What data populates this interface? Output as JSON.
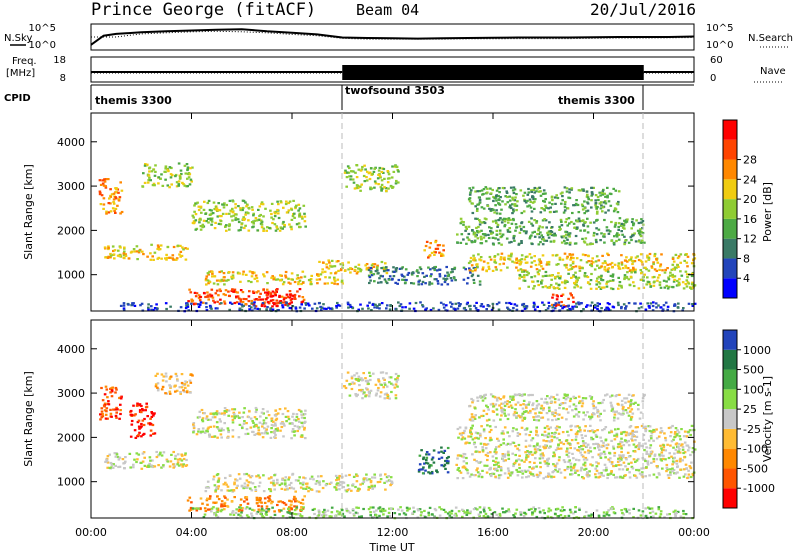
{
  "header": {
    "station": "Prince George (fitACF)",
    "beam": "Beam 04",
    "date": "20/Jul/2016"
  },
  "labels": {
    "nsky": "N.Sky",
    "nsearch": "N.Search",
    "freq_line1": "Freq.",
    "freq_line2": "[MHz]",
    "nave": "Nave",
    "cpid": "CPID",
    "time_axis": "Time UT"
  },
  "colors": {
    "power": [
      "#0000ff",
      "#2244bb",
      "#3a7a66",
      "#4daa44",
      "#8fcc33",
      "#f0cc11",
      "#ff8800",
      "#ff4400",
      "#ff0000"
    ],
    "velocity": [
      "#ff0000",
      "#ff5500",
      "#ff8800",
      "#ffbb33",
      "#c8c8c8",
      "#88dd44",
      "#44aa44",
      "#227744",
      "#2244bb"
    ]
  },
  "chart_data": [
    {
      "type": "line",
      "name": "noise-panel",
      "left_ticks": [
        "10^5",
        "10^0"
      ],
      "right_ticks": [
        "10^5",
        "10^0"
      ],
      "x_range": [
        0,
        24
      ],
      "series": [
        {
          "name": "N.Sky",
          "style": "solid",
          "x": [
            0,
            0.5,
            1,
            2,
            3,
            4,
            5,
            6,
            7,
            8,
            9,
            10,
            11,
            12,
            13,
            14,
            15,
            16,
            17,
            18,
            19,
            20,
            21,
            22,
            23,
            24
          ],
          "y": [
            0.2,
            0.55,
            0.62,
            0.68,
            0.72,
            0.75,
            0.78,
            0.8,
            0.72,
            0.66,
            0.6,
            0.48,
            0.46,
            0.45,
            0.44,
            0.45,
            0.46,
            0.47,
            0.48,
            0.48,
            0.48,
            0.49,
            0.5,
            0.5,
            0.5,
            0.52
          ]
        },
        {
          "name": "N.Search",
          "style": "dotted",
          "x": [
            0,
            1,
            2,
            3,
            4,
            5,
            6,
            7,
            8,
            9,
            10,
            11,
            12,
            13,
            14,
            15,
            16,
            17,
            18,
            19,
            20,
            21,
            22,
            23,
            24
          ],
          "y": [
            0.5,
            0.5,
            0.62,
            0.66,
            0.7,
            0.72,
            0.7,
            0.66,
            0.6,
            0.55,
            0.45,
            0.42,
            0.42,
            0.42,
            0.42,
            0.43,
            0.43,
            0.44,
            0.44,
            0.44,
            0.45,
            0.46,
            0.46,
            0.47,
            0.48
          ]
        }
      ]
    },
    {
      "type": "area",
      "name": "freq-nave-panel",
      "left_ticks": [
        "18",
        "8"
      ],
      "right_ticks": [
        "60",
        "0"
      ],
      "freq_mhz": 10,
      "segments": [
        {
          "start": 0,
          "end": 10,
          "level": "low"
        },
        {
          "start": 10,
          "end": 22,
          "level": "high"
        },
        {
          "start": 22,
          "end": 24,
          "level": "low"
        }
      ]
    },
    {
      "type": "table",
      "name": "cpid-strip",
      "segments": [
        {
          "start": 0,
          "end": 10,
          "label": "themis 3300",
          "align": "left"
        },
        {
          "start": 10,
          "end": 22,
          "label": "twofsound 3503",
          "align": "left"
        },
        {
          "start": 18,
          "end": 22,
          "label": "themis 3300",
          "align": "left"
        }
      ]
    },
    {
      "type": "heatmap",
      "name": "power",
      "ylabel": "Slant Range [km]",
      "yticks": [
        1000,
        2000,
        3000,
        4000
      ],
      "ylim": [
        180,
        4650
      ],
      "x_range": [
        0,
        24
      ],
      "colorbar": {
        "label": "Power [dB]",
        "ticks": [
          "4",
          "8",
          "12",
          "16",
          "20",
          "24",
          "28"
        ]
      },
      "blobs": [
        {
          "t0": 0.5,
          "t1": 3.8,
          "r0": 1350,
          "r1": 1700,
          "c": 5
        },
        {
          "t0": 0.3,
          "t1": 1.2,
          "r0": 2400,
          "r1": 3200,
          "c": 6
        },
        {
          "t0": 2.0,
          "t1": 4.0,
          "r0": 3000,
          "r1": 3550,
          "c": 4
        },
        {
          "t0": 3.8,
          "t1": 8.5,
          "r0": 350,
          "r1": 700,
          "c": 7
        },
        {
          "t0": 6.5,
          "t1": 8.0,
          "r0": 300,
          "r1": 650,
          "c": 8
        },
        {
          "t0": 4.5,
          "t1": 10.0,
          "r0": 800,
          "r1": 1100,
          "c": 5
        },
        {
          "t0": 9.0,
          "t1": 11.8,
          "r0": 1050,
          "r1": 1350,
          "c": 5
        },
        {
          "t0": 4.0,
          "t1": 8.5,
          "r0": 2000,
          "r1": 2700,
          "c": 4
        },
        {
          "t0": 10.0,
          "t1": 12.2,
          "r0": 2900,
          "r1": 3500,
          "c": 4
        },
        {
          "t0": 11.0,
          "t1": 15.5,
          "r0": 800,
          "r1": 1200,
          "c": 2
        },
        {
          "t0": 13.2,
          "t1": 14.0,
          "r0": 1400,
          "r1": 1800,
          "c": 6
        },
        {
          "t0": 14.5,
          "t1": 22.0,
          "r0": 1700,
          "r1": 2300,
          "c": 3
        },
        {
          "t0": 15.0,
          "t1": 24.0,
          "r0": 1100,
          "r1": 1500,
          "c": 5
        },
        {
          "t0": 17.0,
          "t1": 24.0,
          "r0": 700,
          "r1": 1100,
          "c": 4
        },
        {
          "t0": 18.3,
          "t1": 19.2,
          "r0": 300,
          "r1": 600,
          "c": 7
        },
        {
          "t0": 1.0,
          "t1": 24.0,
          "r0": 200,
          "r1": 400,
          "c": 1
        },
        {
          "t0": 15.0,
          "t1": 21.0,
          "r0": 2400,
          "r1": 3000,
          "c": 3
        }
      ]
    },
    {
      "type": "heatmap",
      "name": "velocity",
      "ylabel": "Slant Range [km]",
      "yticks": [
        1000,
        2000,
        3000,
        4000
      ],
      "ylim": [
        180,
        4650
      ],
      "x_range": [
        0,
        24
      ],
      "xticks": [
        "00:00",
        "04:00",
        "08:00",
        "12:00",
        "16:00",
        "20:00",
        "00:00"
      ],
      "xlabel": "Time UT",
      "colorbar": {
        "label": "Velocity [m s-1]",
        "ticks": [
          "-1000",
          "-500",
          "-100",
          "-25",
          "25",
          "100",
          "500",
          "1000"
        ]
      },
      "blobs": [
        {
          "t0": 0.5,
          "t1": 3.8,
          "r0": 1300,
          "r1": 1700,
          "c": 4
        },
        {
          "t0": 0.3,
          "t1": 1.2,
          "r0": 2400,
          "r1": 3200,
          "c": 1
        },
        {
          "t0": 1.5,
          "t1": 2.5,
          "r0": 2000,
          "r1": 2800,
          "c": 0
        },
        {
          "t0": 3.8,
          "t1": 8.5,
          "r0": 350,
          "r1": 700,
          "c": 2
        },
        {
          "t0": 4.5,
          "t1": 12.0,
          "r0": 800,
          "r1": 1200,
          "c": 4
        },
        {
          "t0": 4.0,
          "t1": 8.5,
          "r0": 2000,
          "r1": 2700,
          "c": 4
        },
        {
          "t0": 10.0,
          "t1": 12.2,
          "r0": 2900,
          "r1": 3500,
          "c": 4
        },
        {
          "t0": 13.0,
          "t1": 14.2,
          "r0": 1200,
          "r1": 1800,
          "c": 7
        },
        {
          "t0": 14.5,
          "t1": 24.0,
          "r0": 1100,
          "r1": 2300,
          "c": 4
        },
        {
          "t0": 15.0,
          "t1": 22.0,
          "r0": 2400,
          "r1": 3000,
          "c": 4
        },
        {
          "t0": 4.0,
          "t1": 24.0,
          "r0": 200,
          "r1": 450,
          "c": 5
        },
        {
          "t0": 2.5,
          "t1": 4.0,
          "r0": 3000,
          "r1": 3500,
          "c": 3
        }
      ]
    }
  ]
}
